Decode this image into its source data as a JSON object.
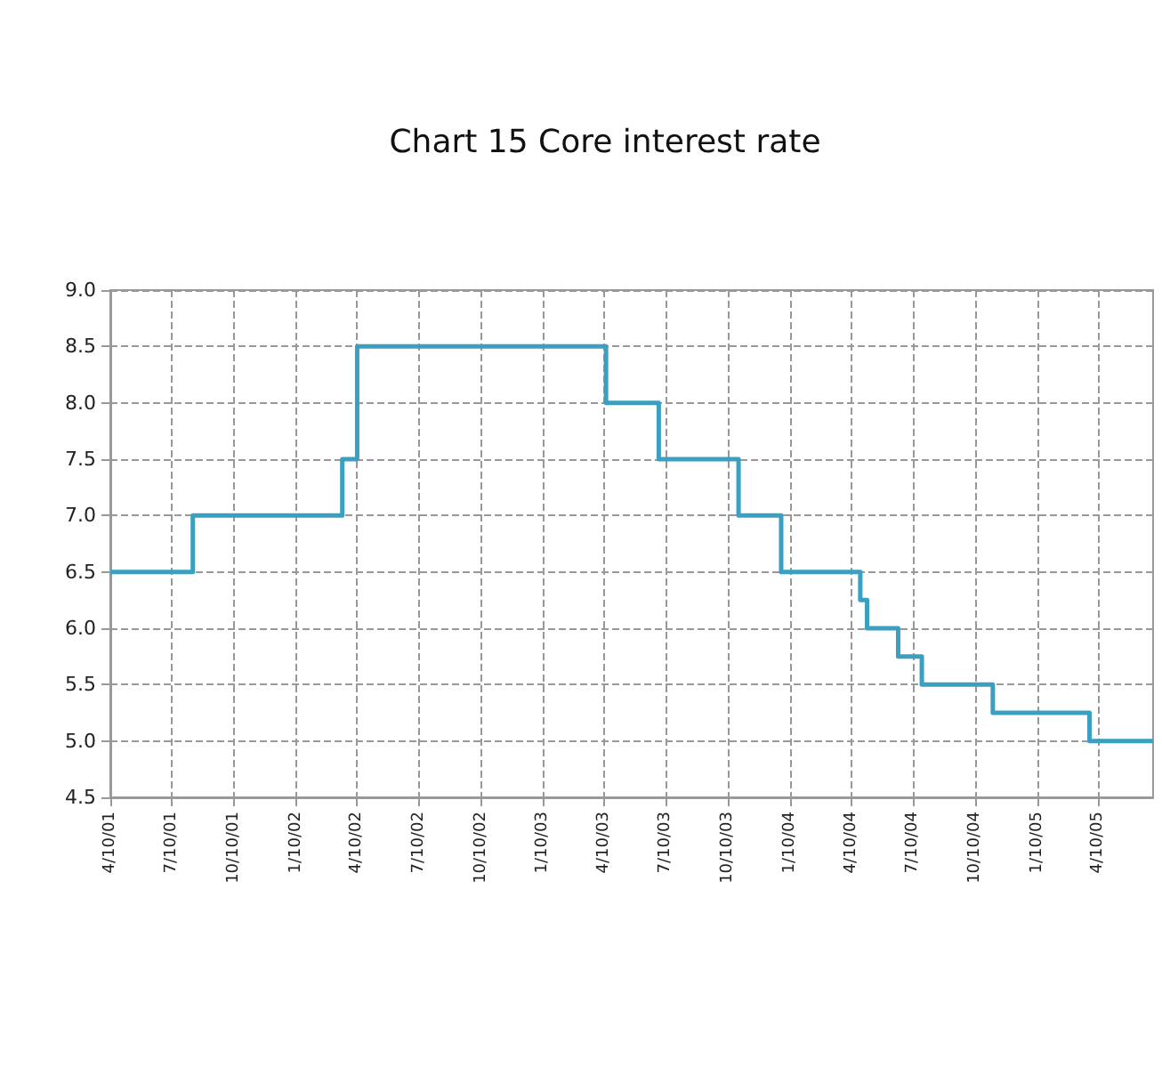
{
  "chart_data": {
    "type": "step",
    "title": "Chart 15 Core interest rate",
    "x": [
      "2001-04-10",
      "2001-08-10",
      "2002-03-19",
      "2002-04-10",
      "2003-04-13",
      "2003-06-30",
      "2003-10-26",
      "2003-12-28",
      "2004-04-23",
      "2004-05-03",
      "2004-06-18",
      "2004-07-23",
      "2004-11-05",
      "2005-03-28",
      "2005-06-30"
    ],
    "series": [
      {
        "color": "#3a9fc0",
        "values": [
          6.5,
          7.0,
          7.5,
          8.5,
          8.0,
          7.5,
          7.0,
          6.5,
          6.25,
          6.0,
          5.75,
          5.5,
          5.25,
          5.0,
          5.0
        ]
      }
    ],
    "xlim": [
      "2001-04-10",
      "2005-06-30"
    ],
    "xticks": [
      {
        "value": "2001-04-10",
        "label": "4/10/01"
      },
      {
        "value": "2001-07-10",
        "label": "7/10/01"
      },
      {
        "value": "2001-10-10",
        "label": "10/10/01"
      },
      {
        "value": "2002-01-10",
        "label": "1/10/02"
      },
      {
        "value": "2002-04-10",
        "label": "4/10/02"
      },
      {
        "value": "2002-07-10",
        "label": "7/10/02"
      },
      {
        "value": "2002-10-10",
        "label": "10/10/02"
      },
      {
        "value": "2003-01-10",
        "label": "1/10/03"
      },
      {
        "value": "2003-04-10",
        "label": "4/10/03"
      },
      {
        "value": "2003-07-10",
        "label": "7/10/03"
      },
      {
        "value": "2003-10-10",
        "label": "10/10/03"
      },
      {
        "value": "2004-01-10",
        "label": "1/10/04"
      },
      {
        "value": "2004-04-10",
        "label": "4/10/04"
      },
      {
        "value": "2004-07-10",
        "label": "7/10/04"
      },
      {
        "value": "2004-10-10",
        "label": "10/10/04"
      },
      {
        "value": "2005-01-10",
        "label": "1/10/05"
      },
      {
        "value": "2005-04-10",
        "label": "4/10/05"
      }
    ],
    "ylim": [
      4.5,
      9.0
    ],
    "yticks": [
      4.5,
      {
        "value": 5,
        "label": "5.0"
      },
      5.5,
      {
        "value": 6,
        "label": "6.0"
      },
      6.5,
      {
        "value": 7,
        "label": "7.0"
      },
      7.5,
      {
        "value": 8,
        "label": "8.0"
      },
      8.5,
      {
        "value": 9,
        "label": "9.0"
      }
    ],
    "grid": true
  }
}
